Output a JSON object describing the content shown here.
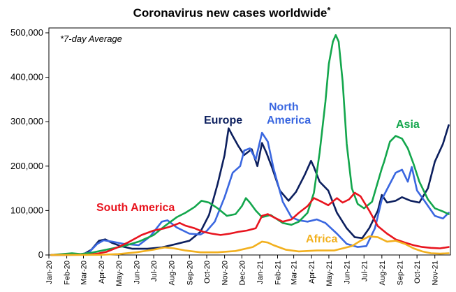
{
  "chart_data": {
    "type": "line",
    "title": "Coronavirus new cases worldwide",
    "title_marker": "*",
    "annotation": "*7-day Average",
    "xlabel": "",
    "ylabel": "",
    "ylim": [
      0,
      500000
    ],
    "y_ticks": [
      0,
      100000,
      200000,
      300000,
      400000,
      500000
    ],
    "y_tick_labels": [
      "0",
      "100,000",
      "200,000",
      "300,000",
      "400,000",
      "500,000"
    ],
    "x_domain": [
      "2020-01",
      "2021-11"
    ],
    "x_tick_labels": [
      "Jan-20",
      "Feb-20",
      "Mar-20",
      "Apr-20",
      "May-20",
      "Jun-20",
      "Jul-20",
      "Aug-20",
      "Sep-20",
      "Oct-20",
      "Nov-20",
      "Dec-20",
      "Jan-21",
      "Feb-21",
      "Mar-21",
      "Apr-21",
      "May-21",
      "Jun-21",
      "Jul-21",
      "Aug-21",
      "Sep-21",
      "Oct-21",
      "Nov-21"
    ],
    "grid": false,
    "legend": "inline",
    "series": [
      {
        "name": "Europe",
        "color": "#0c1f5e",
        "points": [
          [
            "2020-01-05",
            0
          ],
          [
            "2020-02-15",
            500
          ],
          [
            "2020-03-01",
            1500
          ],
          [
            "2020-03-15",
            12000
          ],
          [
            "2020-03-28",
            32000
          ],
          [
            "2020-04-08",
            35000
          ],
          [
            "2020-04-20",
            27000
          ],
          [
            "2020-05-05",
            20000
          ],
          [
            "2020-05-25",
            14000
          ],
          [
            "2020-06-20",
            14000
          ],
          [
            "2020-07-15",
            17000
          ],
          [
            "2020-08-10",
            25000
          ],
          [
            "2020-09-01",
            32000
          ],
          [
            "2020-09-20",
            52000
          ],
          [
            "2020-10-05",
            90000
          ],
          [
            "2020-10-20",
            160000
          ],
          [
            "2020-11-01",
            225000
          ],
          [
            "2020-11-08",
            285000
          ],
          [
            "2020-11-15",
            268000
          ],
          [
            "2020-11-25",
            245000
          ],
          [
            "2020-12-05",
            225000
          ],
          [
            "2020-12-18",
            238000
          ],
          [
            "2020-12-28",
            200000
          ],
          [
            "2021-01-05",
            252000
          ],
          [
            "2021-01-12",
            232000
          ],
          [
            "2021-01-22",
            198000
          ],
          [
            "2021-02-05",
            145000
          ],
          [
            "2021-02-20",
            122000
          ],
          [
            "2021-03-05",
            142000
          ],
          [
            "2021-03-20",
            180000
          ],
          [
            "2021-03-31",
            212000
          ],
          [
            "2021-04-05",
            198000
          ],
          [
            "2021-04-15",
            165000
          ],
          [
            "2021-04-30",
            145000
          ],
          [
            "2021-05-15",
            95000
          ],
          [
            "2021-06-01",
            60000
          ],
          [
            "2021-06-15",
            40000
          ],
          [
            "2021-06-28",
            38000
          ],
          [
            "2021-07-10",
            60000
          ],
          [
            "2021-07-25",
            100000
          ],
          [
            "2021-08-01",
            135000
          ],
          [
            "2021-08-10",
            118000
          ],
          [
            "2021-08-25",
            122000
          ],
          [
            "2021-09-05",
            130000
          ],
          [
            "2021-09-20",
            122000
          ],
          [
            "2021-10-05",
            118000
          ],
          [
            "2021-10-20",
            150000
          ],
          [
            "2021-11-01",
            210000
          ],
          [
            "2021-11-15",
            250000
          ],
          [
            "2021-11-25",
            292000
          ]
        ]
      },
      {
        "name": "North America",
        "color": "#3a67e0",
        "points": [
          [
            "2020-01-05",
            0
          ],
          [
            "2020-02-20",
            500
          ],
          [
            "2020-03-10",
            5000
          ],
          [
            "2020-03-25",
            25000
          ],
          [
            "2020-04-05",
            33000
          ],
          [
            "2020-04-20",
            30000
          ],
          [
            "2020-05-10",
            25000
          ],
          [
            "2020-06-05",
            22000
          ],
          [
            "2020-06-25",
            42000
          ],
          [
            "2020-07-15",
            75000
          ],
          [
            "2020-07-25",
            78000
          ],
          [
            "2020-08-10",
            62000
          ],
          [
            "2020-09-01",
            48000
          ],
          [
            "2020-09-20",
            46000
          ],
          [
            "2020-10-01",
            54000
          ],
          [
            "2020-10-15",
            75000
          ],
          [
            "2020-11-01",
            130000
          ],
          [
            "2020-11-15",
            185000
          ],
          [
            "2020-11-28",
            200000
          ],
          [
            "2020-12-05",
            235000
          ],
          [
            "2020-12-15",
            240000
          ],
          [
            "2020-12-25",
            215000
          ],
          [
            "2021-01-05",
            275000
          ],
          [
            "2021-01-15",
            255000
          ],
          [
            "2021-01-25",
            195000
          ],
          [
            "2021-02-10",
            120000
          ],
          [
            "2021-02-25",
            85000
          ],
          [
            "2021-03-10",
            78000
          ],
          [
            "2021-03-25",
            75000
          ],
          [
            "2021-04-10",
            80000
          ],
          [
            "2021-04-25",
            72000
          ],
          [
            "2021-05-15",
            48000
          ],
          [
            "2021-06-01",
            25000
          ],
          [
            "2021-06-20",
            18000
          ],
          [
            "2021-07-05",
            20000
          ],
          [
            "2021-07-20",
            60000
          ],
          [
            "2021-08-01",
            125000
          ],
          [
            "2021-08-10",
            148000
          ],
          [
            "2021-08-25",
            185000
          ],
          [
            "2021-09-05",
            192000
          ],
          [
            "2021-09-15",
            165000
          ],
          [
            "2021-09-22",
            198000
          ],
          [
            "2021-10-01",
            145000
          ],
          [
            "2021-10-15",
            120000
          ],
          [
            "2021-11-01",
            88000
          ],
          [
            "2021-11-15",
            82000
          ],
          [
            "2021-11-25",
            95000
          ]
        ]
      },
      {
        "name": "Asia",
        "color": "#13a64c",
        "points": [
          [
            "2020-01-05",
            0
          ],
          [
            "2020-01-25",
            2000
          ],
          [
            "2020-02-10",
            4000
          ],
          [
            "2020-02-25",
            2000
          ],
          [
            "2020-03-15",
            5000
          ],
          [
            "2020-04-10",
            12000
          ],
          [
            "2020-05-10",
            20000
          ],
          [
            "2020-06-05",
            30000
          ],
          [
            "2020-07-01",
            45000
          ],
          [
            "2020-07-20",
            65000
          ],
          [
            "2020-08-10",
            85000
          ],
          [
            "2020-08-25",
            95000
          ],
          [
            "2020-09-10",
            108000
          ],
          [
            "2020-09-22",
            122000
          ],
          [
            "2020-10-05",
            118000
          ],
          [
            "2020-10-20",
            105000
          ],
          [
            "2020-11-05",
            88000
          ],
          [
            "2020-11-20",
            92000
          ],
          [
            "2020-12-01",
            110000
          ],
          [
            "2020-12-08",
            128000
          ],
          [
            "2020-12-15",
            118000
          ],
          [
            "2020-12-25",
            100000
          ],
          [
            "2021-01-05",
            85000
          ],
          [
            "2021-01-20",
            90000
          ],
          [
            "2021-02-10",
            72000
          ],
          [
            "2021-02-25",
            68000
          ],
          [
            "2021-03-10",
            75000
          ],
          [
            "2021-03-25",
            95000
          ],
          [
            "2021-04-05",
            140000
          ],
          [
            "2021-04-15",
            230000
          ],
          [
            "2021-04-25",
            345000
          ],
          [
            "2021-05-01",
            430000
          ],
          [
            "2021-05-08",
            480000
          ],
          [
            "2021-05-13",
            495000
          ],
          [
            "2021-05-18",
            480000
          ],
          [
            "2021-05-25",
            390000
          ],
          [
            "2021-06-01",
            250000
          ],
          [
            "2021-06-10",
            150000
          ],
          [
            "2021-06-20",
            115000
          ],
          [
            "2021-07-01",
            105000
          ],
          [
            "2021-07-15",
            120000
          ],
          [
            "2021-08-01",
            195000
          ],
          [
            "2021-08-05",
            210000
          ],
          [
            "2021-08-15",
            255000
          ],
          [
            "2021-08-25",
            268000
          ],
          [
            "2021-09-05",
            262000
          ],
          [
            "2021-09-15",
            240000
          ],
          [
            "2021-09-25",
            205000
          ],
          [
            "2021-10-05",
            165000
          ],
          [
            "2021-10-20",
            125000
          ],
          [
            "2021-11-01",
            105000
          ],
          [
            "2021-11-15",
            98000
          ],
          [
            "2021-11-25",
            92000
          ]
        ]
      },
      {
        "name": "South America",
        "color": "#e8141e",
        "points": [
          [
            "2020-01-05",
            0
          ],
          [
            "2020-03-10",
            500
          ],
          [
            "2020-03-25",
            3000
          ],
          [
            "2020-04-10",
            7000
          ],
          [
            "2020-05-01",
            18000
          ],
          [
            "2020-05-20",
            30000
          ],
          [
            "2020-06-10",
            45000
          ],
          [
            "2020-07-01",
            55000
          ],
          [
            "2020-07-20",
            60000
          ],
          [
            "2020-08-01",
            65000
          ],
          [
            "2020-08-15",
            72000
          ],
          [
            "2020-08-25",
            66000
          ],
          [
            "2020-09-10",
            60000
          ],
          [
            "2020-09-25",
            52000
          ],
          [
            "2020-10-10",
            48000
          ],
          [
            "2020-10-25",
            45000
          ],
          [
            "2020-11-10",
            48000
          ],
          [
            "2020-11-25",
            52000
          ],
          [
            "2020-12-10",
            55000
          ],
          [
            "2020-12-25",
            60000
          ],
          [
            "2021-01-05",
            88000
          ],
          [
            "2021-01-15",
            92000
          ],
          [
            "2021-01-25",
            85000
          ],
          [
            "2021-02-10",
            75000
          ],
          [
            "2021-02-25",
            80000
          ],
          [
            "2021-03-10",
            95000
          ],
          [
            "2021-03-25",
            110000
          ],
          [
            "2021-04-05",
            128000
          ],
          [
            "2021-04-15",
            122000
          ],
          [
            "2021-04-30",
            112000
          ],
          [
            "2021-05-15",
            128000
          ],
          [
            "2021-05-25",
            118000
          ],
          [
            "2021-06-05",
            125000
          ],
          [
            "2021-06-15",
            140000
          ],
          [
            "2021-06-25",
            132000
          ],
          [
            "2021-07-10",
            100000
          ],
          [
            "2021-07-25",
            65000
          ],
          [
            "2021-08-10",
            48000
          ],
          [
            "2021-08-25",
            35000
          ],
          [
            "2021-09-10",
            28000
          ],
          [
            "2021-09-25",
            22000
          ],
          [
            "2021-10-10",
            18000
          ],
          [
            "2021-10-25",
            16000
          ],
          [
            "2021-11-10",
            15000
          ],
          [
            "2021-11-25",
            18000
          ]
        ]
      },
      {
        "name": "Africa",
        "color": "#f2b01e",
        "points": [
          [
            "2020-01-05",
            0
          ],
          [
            "2020-04-01",
            500
          ],
          [
            "2020-05-01",
            2000
          ],
          [
            "2020-06-01",
            6000
          ],
          [
            "2020-07-01",
            12000
          ],
          [
            "2020-07-20",
            17000
          ],
          [
            "2020-08-05",
            15000
          ],
          [
            "2020-08-25",
            10000
          ],
          [
            "2020-09-20",
            6000
          ],
          [
            "2020-10-20",
            6000
          ],
          [
            "2020-11-20",
            9000
          ],
          [
            "2020-12-20",
            18000
          ],
          [
            "2021-01-05",
            30000
          ],
          [
            "2021-01-15",
            28000
          ],
          [
            "2021-01-25",
            22000
          ],
          [
            "2021-02-15",
            12000
          ],
          [
            "2021-03-10",
            8000
          ],
          [
            "2021-04-10",
            10000
          ],
          [
            "2021-05-10",
            10000
          ],
          [
            "2021-06-10",
            20000
          ],
          [
            "2021-06-25",
            32000
          ],
          [
            "2021-07-10",
            42000
          ],
          [
            "2021-07-25",
            40000
          ],
          [
            "2021-08-10",
            30000
          ],
          [
            "2021-08-25",
            32000
          ],
          [
            "2021-09-10",
            25000
          ],
          [
            "2021-09-25",
            15000
          ],
          [
            "2021-10-10",
            8000
          ],
          [
            "2021-10-25",
            4000
          ],
          [
            "2021-11-10",
            3000
          ],
          [
            "2021-11-25",
            4000
          ]
        ]
      }
    ],
    "series_labels": [
      {
        "text": "Europe",
        "series": "Europe"
      },
      {
        "text": "North",
        "series": "North America"
      },
      {
        "text": "America",
        "series": "North America"
      },
      {
        "text": "Asia",
        "series": "Asia"
      },
      {
        "text": "South America",
        "series": "South America"
      },
      {
        "text": "Africa",
        "series": "Africa"
      }
    ]
  }
}
